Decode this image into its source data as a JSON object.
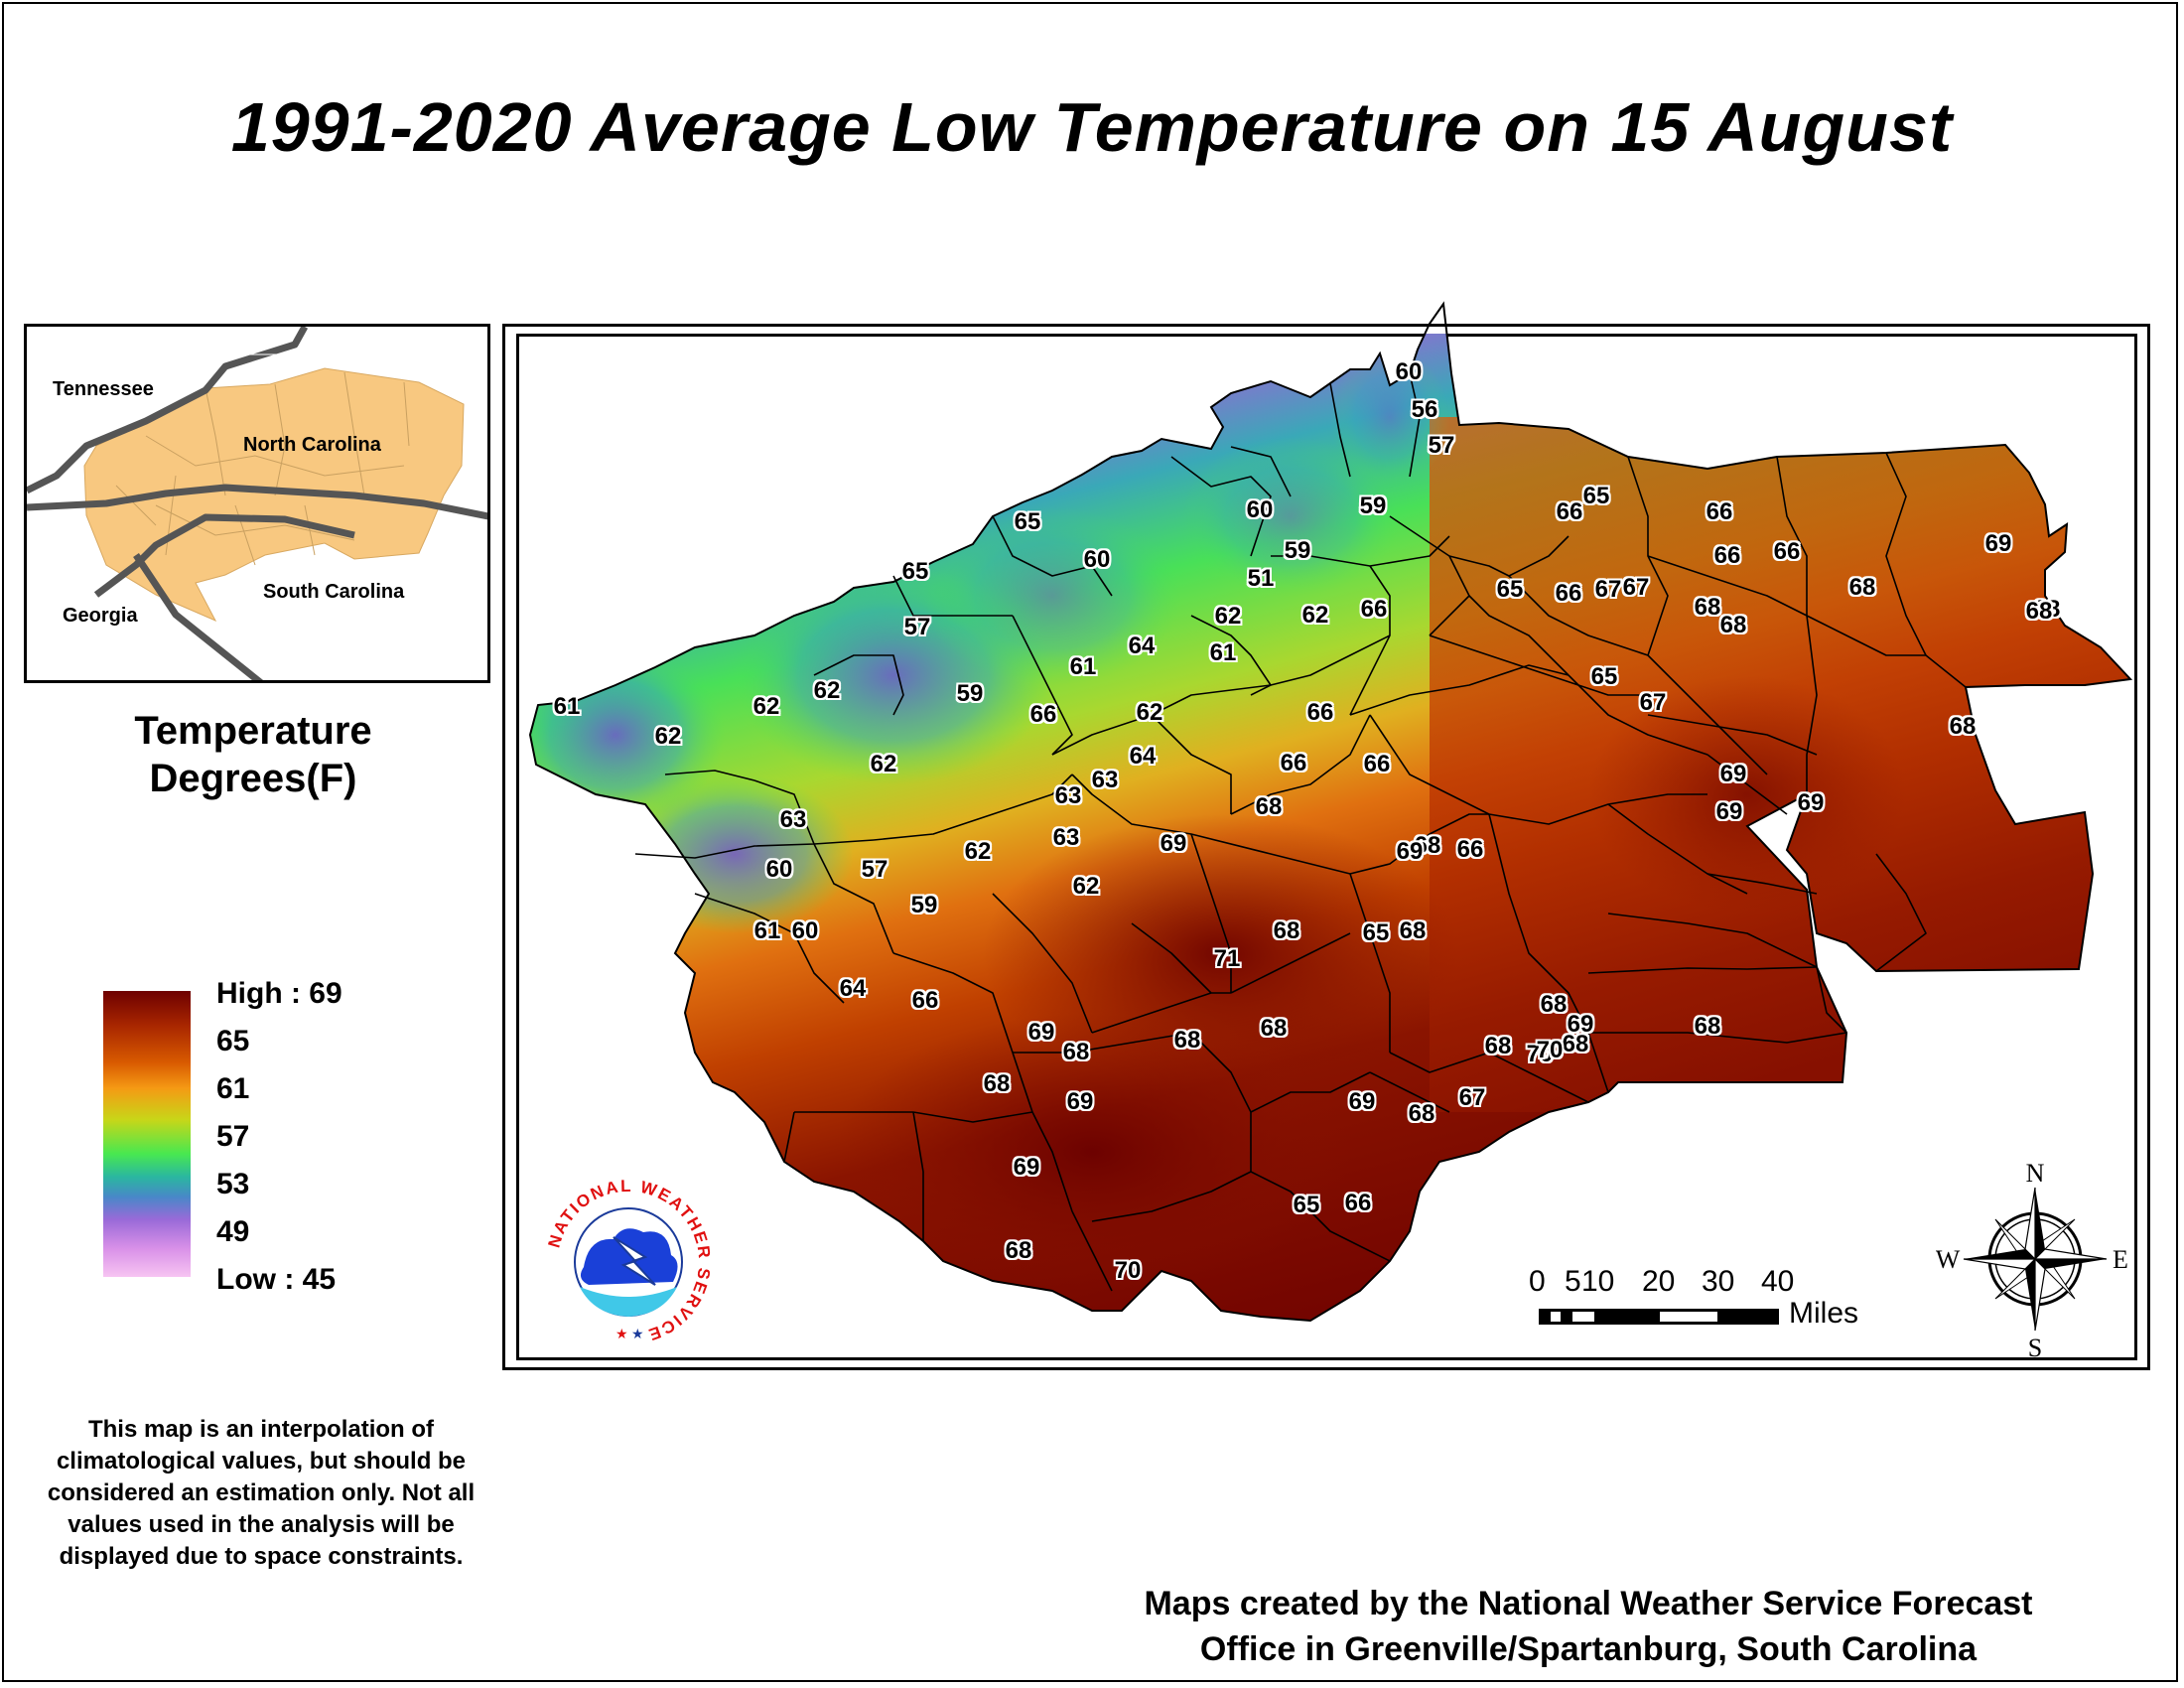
{
  "title": "1991-2020 Average Low Temperature on 15 August",
  "inset": {
    "labels": [
      "Tennessee",
      "North Carolina",
      "Georgia",
      "South Carolina"
    ],
    "fill_color": "#f8c880"
  },
  "legend": {
    "title_line1": "Temperature",
    "title_line2": "Degrees(F)",
    "high_label": "High : 69",
    "ticks": [
      "65",
      "61",
      "57",
      "53",
      "49"
    ],
    "low_label": "Low : 45",
    "colors": [
      "#6e0000",
      "#d85a00",
      "#f59a14",
      "#48e850",
      "#2ab7a0",
      "#9a6ad8",
      "#f7c4f2"
    ]
  },
  "note": "This map is an interpolation of climatological values, but should be considered an estimation only. Not all values used in the analysis will be displayed due to space constraints.",
  "credit_line1": "Maps created by the National Weather Service Forecast",
  "credit_line2": "Office in Greenville/Spartanburg, South Carolina",
  "scale_bar": {
    "numbers": [
      "0",
      "5",
      "10",
      "20",
      "30",
      "40"
    ],
    "units": "Miles"
  },
  "compass": {
    "n": "N",
    "s": "S",
    "e": "E",
    "w": "W"
  },
  "logo_text": "NATIONAL WEATHER SERVICE",
  "station_values": [
    "60",
    "56",
    "57",
    "59",
    "60",
    "59",
    "51",
    "65",
    "60",
    "65",
    "57",
    "59",
    "61",
    "62",
    "62",
    "62",
    "62",
    "63",
    "60",
    "57",
    "61",
    "60",
    "59",
    "64",
    "66",
    "62",
    "63",
    "61",
    "64",
    "61",
    "62",
    "62",
    "66",
    "66",
    "62",
    "64",
    "63",
    "62",
    "63",
    "66",
    "68",
    "66",
    "66",
    "65",
    "65",
    "66",
    "66",
    "67",
    "68",
    "66",
    "65",
    "66",
    "67",
    "68",
    "67",
    "65",
    "69",
    "69",
    "69",
    "68",
    "66",
    "68",
    "68",
    "69",
    "68",
    "71",
    "69",
    "68",
    "68",
    "68",
    "69",
    "68",
    "66",
    "70",
    "68",
    "69",
    "68",
    "67",
    "68",
    "68",
    "69",
    "68",
    "70",
    "69",
    "68",
    "69",
    "68",
    "70",
    "65",
    "66",
    "69",
    "68",
    "68"
  ]
}
